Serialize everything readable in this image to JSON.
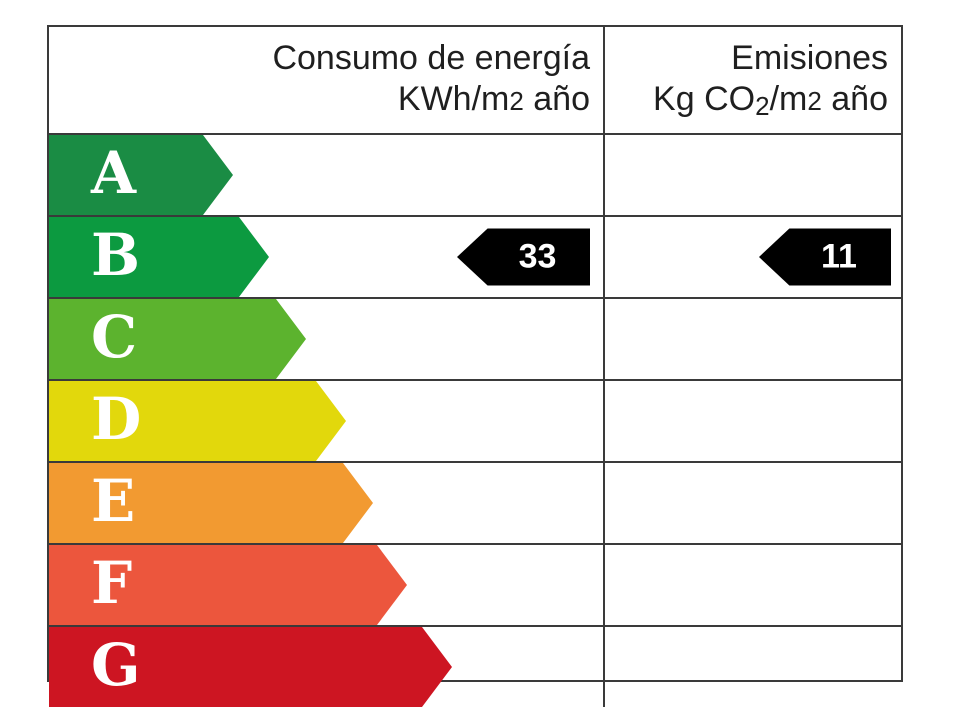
{
  "header": {
    "consumption_line1": "Consumo de energía",
    "consumption_unit_prefix": "KWh/m",
    "consumption_unit_sup": "2",
    "consumption_unit_suffix": " año",
    "emissions_line1": "Emisiones",
    "emissions_unit_prefix": "Kg CO",
    "emissions_unit_sub": "2",
    "emissions_unit_mid": "/m",
    "emissions_unit_sup": "2",
    "emissions_unit_suffix": " año"
  },
  "ratings": [
    {
      "letter": "A",
      "color": "#1a8c44",
      "arrow_pct": 33.2
    },
    {
      "letter": "B",
      "color": "#0c9a40",
      "arrow_pct": 39.7
    },
    {
      "letter": "C",
      "color": "#5cb32e",
      "arrow_pct": 46.4
    },
    {
      "letter": "D",
      "color": "#e2d80c",
      "arrow_pct": 53.6
    },
    {
      "letter": "E",
      "color": "#f29a31",
      "arrow_pct": 58.5
    },
    {
      "letter": "F",
      "color": "#ec563d",
      "arrow_pct": 64.6
    },
    {
      "letter": "G",
      "color": "#cd1522",
      "arrow_pct": 72.7
    }
  ],
  "values": {
    "consumption": "33",
    "emissions": "11",
    "rating_class": "B"
  },
  "colors": {
    "grid_border": "#3a3a3a",
    "value_tag_bg": "#000000",
    "value_tag_text": "#ffffff",
    "header_text": "#1f1f1f",
    "letter_text": "#ffffff"
  },
  "chart_data": {
    "type": "bar",
    "title": "",
    "categories": [
      "A",
      "B",
      "C",
      "D",
      "E",
      "F",
      "G"
    ],
    "columns": [
      "Consumo de energía KWh/m2 año",
      "Emisiones Kg CO2/m2 año"
    ],
    "bar_colors": [
      "#1a8c44",
      "#0c9a40",
      "#5cb32e",
      "#e2d80c",
      "#f29a31",
      "#ec563d",
      "#cd1522"
    ],
    "bar_lengths_relative_pct": [
      33.2,
      39.7,
      46.4,
      53.6,
      58.5,
      64.6,
      72.7
    ],
    "indicators": [
      {
        "column": "Consumo de energía KWh/m2 año",
        "class": "B",
        "value": 33
      },
      {
        "column": "Emisiones Kg CO2/m2 año",
        "class": "B",
        "value": 11
      }
    ],
    "legend_position": "none",
    "grid": true
  }
}
